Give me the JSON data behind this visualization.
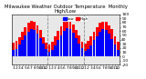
{
  "title": "Milwaukee Weather Outdoor Temperature  Monthly High/Low",
  "title_fontsize": 3.8,
  "months_labels": [
    "1",
    "2",
    "3",
    "4",
    "5",
    "6",
    "7",
    "8",
    "9",
    "10",
    "11",
    "12",
    "1",
    "2",
    "3",
    "4",
    "5",
    "6",
    "7",
    "8",
    "9",
    "10",
    "11",
    "12",
    "1",
    "2",
    "3",
    "4",
    "5",
    "6",
    "7",
    "8",
    "9",
    "10",
    "11",
    "12"
  ],
  "highs": [
    33,
    36,
    46,
    59,
    70,
    80,
    84,
    82,
    74,
    62,
    46,
    33,
    29,
    35,
    47,
    60,
    71,
    81,
    85,
    83,
    75,
    63,
    49,
    35,
    31,
    37,
    47,
    58,
    69,
    79,
    83,
    81,
    74,
    64,
    47,
    34
  ],
  "lows": [
    15,
    18,
    28,
    39,
    49,
    59,
    65,
    63,
    55,
    43,
    30,
    18,
    11,
    16,
    27,
    40,
    50,
    60,
    66,
    64,
    56,
    44,
    31,
    19,
    13,
    17,
    27,
    38,
    48,
    58,
    64,
    62,
    54,
    42,
    28,
    16
  ],
  "high_color": "#ff0000",
  "low_color": "#0000ff",
  "bg_color": "#ffffff",
  "plot_bg": "#e8e8e8",
  "ylim": [
    -20,
    100
  ],
  "yticks": [
    -20,
    -10,
    0,
    10,
    20,
    30,
    40,
    50,
    60,
    70,
    80,
    90,
    100
  ],
  "ytick_labels": [
    "-20",
    "-10",
    "0",
    "10",
    "20",
    "30",
    "40",
    "50",
    "60",
    "70",
    "80",
    "90",
    "100"
  ],
  "tick_fontsize": 3.2,
  "dividers": [
    12,
    24
  ],
  "divider_color": "#888888",
  "legend_high": "High",
  "legend_low": "Low",
  "bar_width": 0.85
}
